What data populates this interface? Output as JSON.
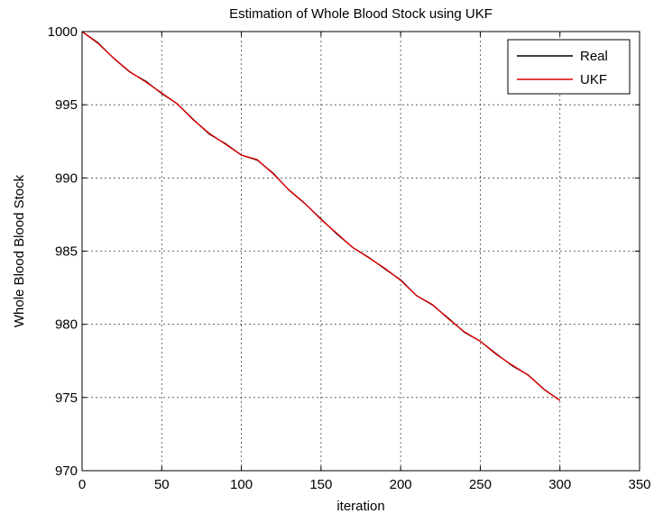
{
  "chart_data": {
    "type": "line",
    "title": "Estimation of Whole Blood Stock using UKF",
    "xlabel": "iteration",
    "ylabel": "Whole Blood  Blood Stock",
    "xlim": [
      0,
      350
    ],
    "ylim": [
      970,
      1000
    ],
    "xticks": [
      0,
      50,
      100,
      150,
      200,
      250,
      300,
      350
    ],
    "yticks": [
      970,
      975,
      980,
      985,
      990,
      995,
      1000
    ],
    "grid": true,
    "grid_style": "dotted",
    "legend_position": "top-right",
    "series": [
      {
        "name": "Real",
        "color": "#000000",
        "x": [
          0,
          10,
          20,
          30,
          40,
          50,
          60,
          70,
          80,
          90,
          100,
          110,
          120,
          130,
          140,
          150,
          160,
          170,
          180,
          190,
          200,
          210,
          220,
          230,
          240,
          250,
          260,
          270,
          280,
          290,
          300
        ],
        "y": [
          1000,
          999.2,
          998.2,
          997.2,
          996.6,
          995.8,
          995.0,
          994.0,
          993.0,
          992.3,
          991.6,
          991.2,
          990.3,
          989.2,
          988.2,
          987.2,
          986.2,
          985.2,
          984.6,
          983.8,
          983.0,
          982.0,
          981.3,
          980.4,
          979.5,
          978.8,
          978.0,
          977.2,
          976.5,
          975.6,
          974.8
        ]
      },
      {
        "name": "UKF",
        "color": "#dd0000",
        "x": [
          0,
          10,
          20,
          30,
          40,
          50,
          60,
          70,
          80,
          90,
          100,
          110,
          120,
          130,
          140,
          150,
          160,
          170,
          180,
          190,
          200,
          210,
          220,
          230,
          240,
          250,
          260,
          270,
          280,
          290,
          300
        ],
        "y": [
          1000,
          999.2,
          998.2,
          997.2,
          996.6,
          995.8,
          995.0,
          994.0,
          993.0,
          992.3,
          991.6,
          991.2,
          990.3,
          989.2,
          988.2,
          987.2,
          986.2,
          985.2,
          984.6,
          983.8,
          983.0,
          982.0,
          981.3,
          980.4,
          979.5,
          978.8,
          978.0,
          977.2,
          976.5,
          975.6,
          974.8
        ]
      }
    ]
  }
}
